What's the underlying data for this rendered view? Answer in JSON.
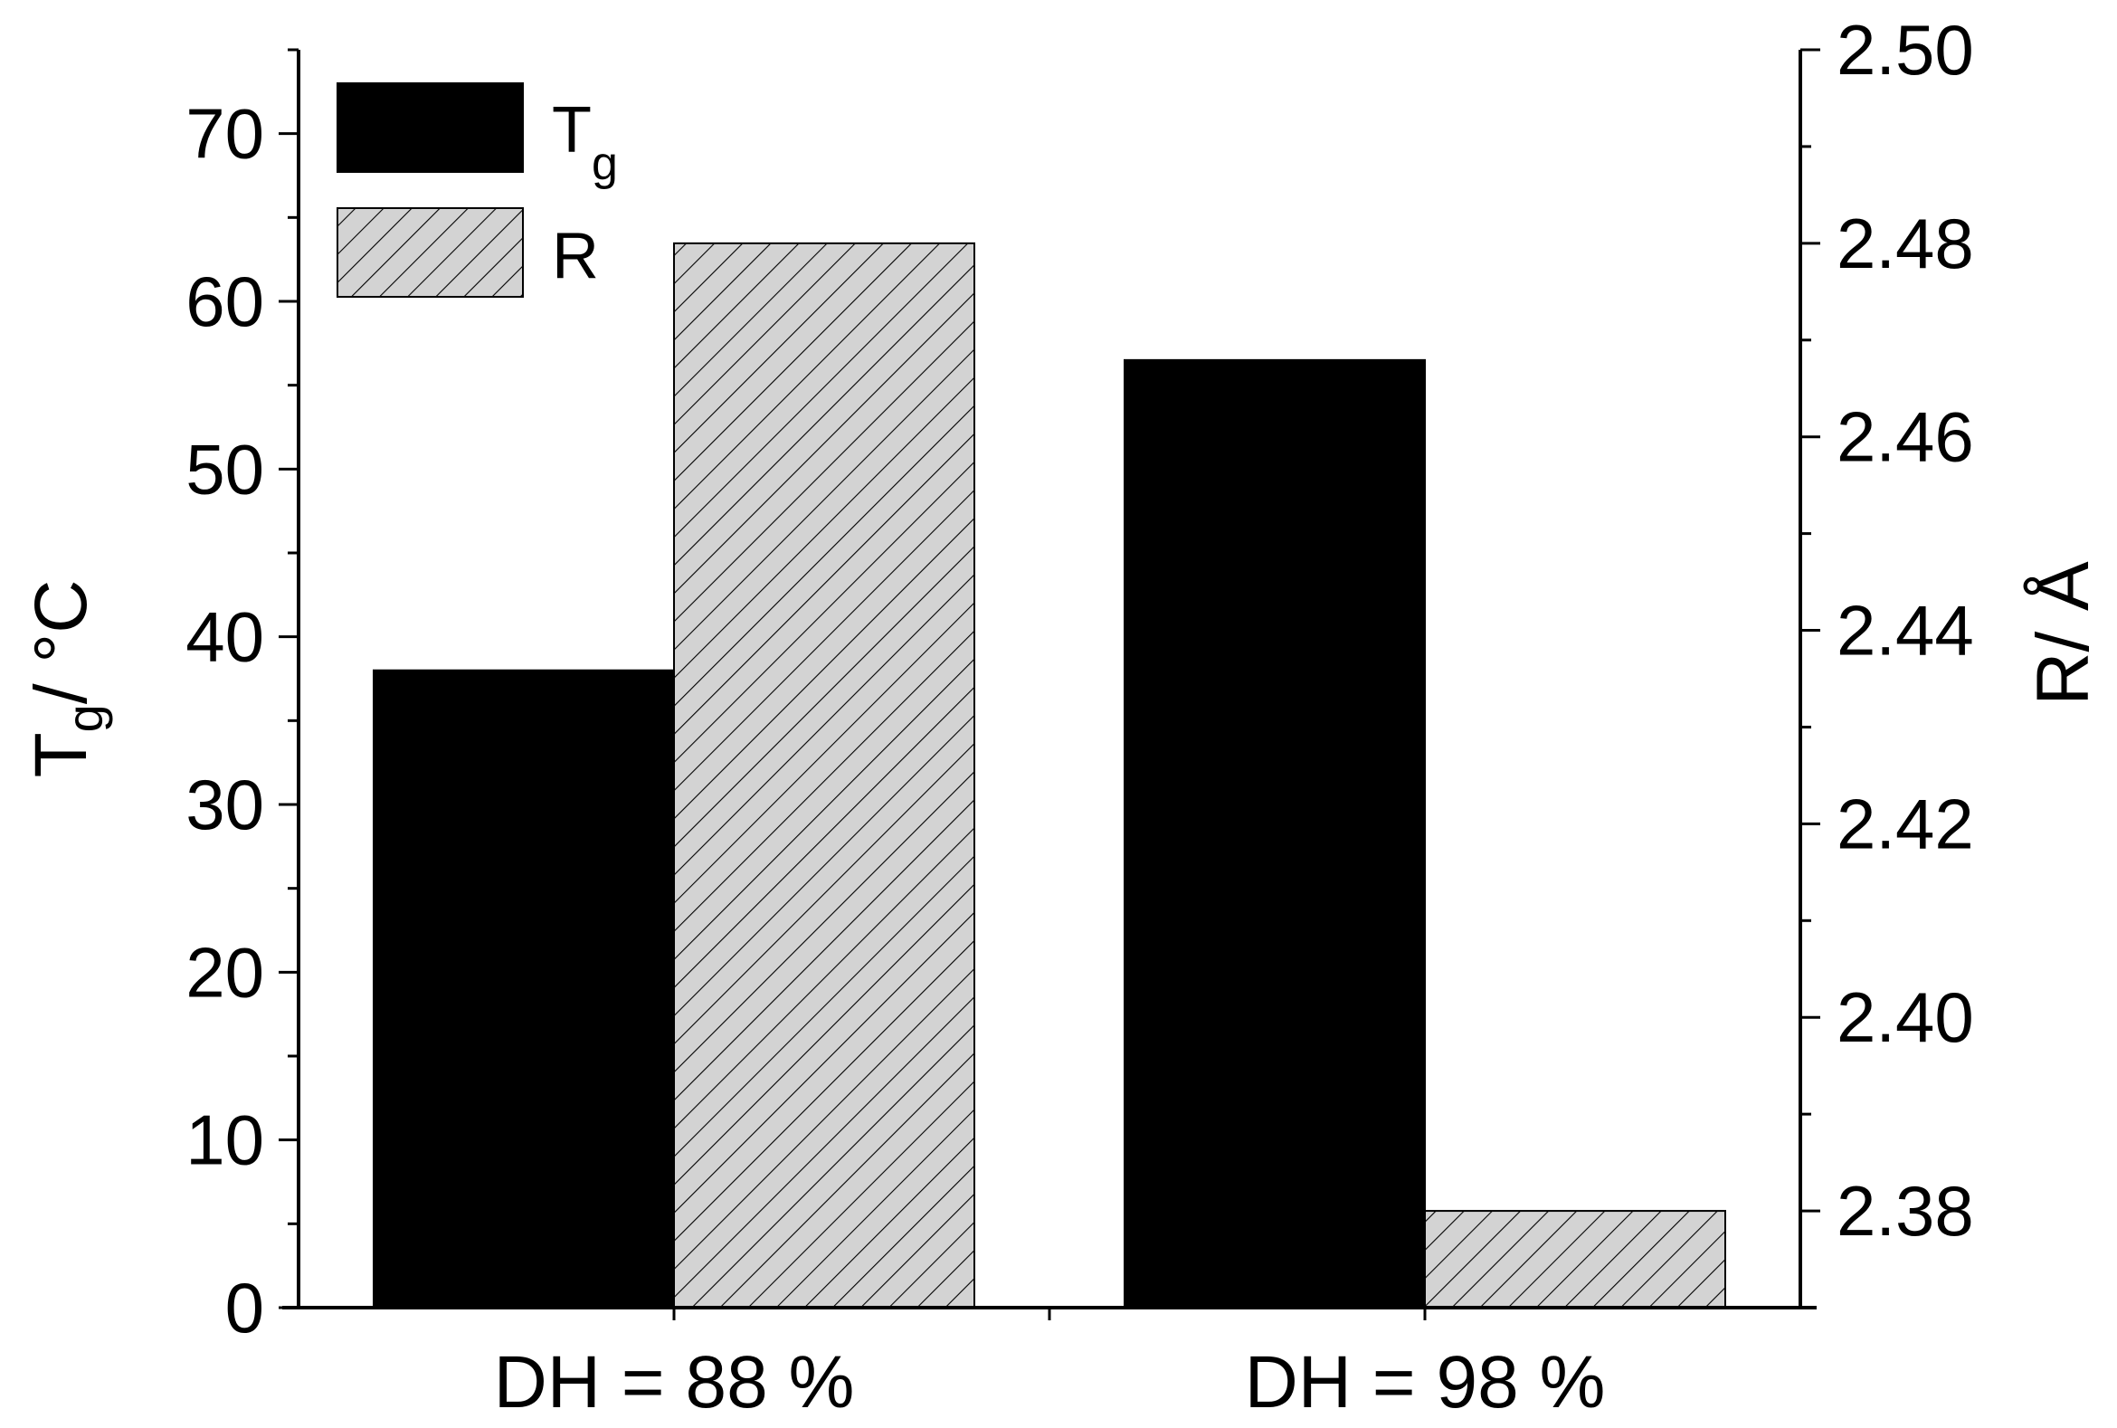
{
  "chart_data": {
    "type": "bar",
    "categories": [
      "DH = 88 %",
      "DH = 98 %"
    ],
    "series": [
      {
        "key": "tg",
        "name": "T",
        "name_subscript": "g",
        "axis": "left",
        "values": [
          38,
          56.5
        ],
        "fill": "#000000",
        "pattern": "solid"
      },
      {
        "key": "r",
        "name": "R",
        "axis": "right",
        "values": [
          2.48,
          2.38
        ],
        "fill": "#d3d3d3",
        "pattern": "diagonal-hatch"
      }
    ],
    "left_axis": {
      "label_main": "T",
      "label_sub": "g",
      "label_rest": "/ °C",
      "ylim": [
        0,
        75
      ],
      "ticks": [
        0,
        10,
        20,
        30,
        40,
        50,
        60,
        70
      ],
      "tick_labels": [
        "0",
        "10",
        "20",
        "30",
        "40",
        "50",
        "60",
        "70"
      ]
    },
    "right_axis": {
      "label": "R/ Å",
      "ylim": [
        2.37,
        2.5
      ],
      "ticks": [
        2.38,
        2.4,
        2.42,
        2.44,
        2.46,
        2.48,
        2.5
      ],
      "tick_labels": [
        "2.38",
        "2.40",
        "2.42",
        "2.44",
        "2.46",
        "2.48",
        "2.50"
      ]
    },
    "grid": false,
    "legend_position": "top-left"
  }
}
